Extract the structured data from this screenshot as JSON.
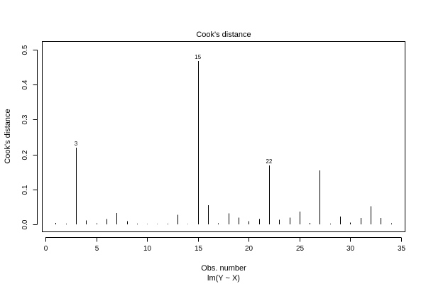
{
  "chart_data": {
    "type": "bar",
    "title": "Cook's distance",
    "xlabel": "Obs. number",
    "xlabel_sub": "lm(Y ~ X)",
    "ylabel": "Cook's distance",
    "xlim": [
      0,
      35
    ],
    "ylim": [
      0,
      0.5
    ],
    "xticks": [
      0,
      5,
      10,
      15,
      20,
      25,
      30,
      35
    ],
    "yticks": [
      0.0,
      0.1,
      0.2,
      0.3,
      0.4,
      0.5
    ],
    "xtick_labels": [
      "0",
      "5",
      "10",
      "15",
      "20",
      "25",
      "30",
      "35"
    ],
    "ytick_labels": [
      "0.0",
      "0.1",
      "0.2",
      "0.3",
      "0.4",
      "0.5"
    ],
    "grid": false,
    "x": [
      1,
      2,
      3,
      4,
      5,
      6,
      7,
      8,
      9,
      10,
      11,
      12,
      13,
      14,
      15,
      16,
      17,
      18,
      19,
      20,
      21,
      22,
      23,
      24,
      25,
      26,
      27,
      28,
      29,
      30,
      31,
      32,
      33,
      34
    ],
    "values": [
      0.004,
      0.002,
      0.22,
      0.011,
      0.003,
      0.015,
      0.033,
      0.009,
      0.002,
      0.001,
      0.001,
      0.002,
      0.027,
      0.001,
      0.467,
      0.055,
      0.003,
      0.031,
      0.019,
      0.009,
      0.015,
      0.169,
      0.013,
      0.019,
      0.037,
      0.004,
      0.154,
      0.002,
      0.022,
      0.005,
      0.018,
      0.052,
      0.018,
      0.003
    ],
    "annotations": [
      {
        "x": 3,
        "y": 0.22,
        "text": "3"
      },
      {
        "x": 15,
        "y": 0.467,
        "text": "15"
      },
      {
        "x": 22,
        "y": 0.169,
        "text": "22"
      }
    ]
  }
}
